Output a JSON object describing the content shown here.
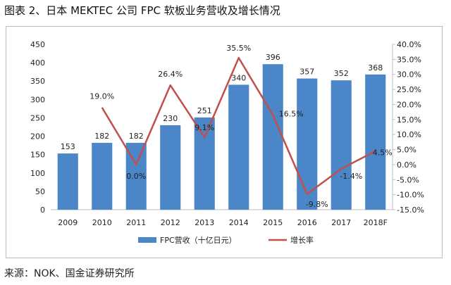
{
  "header": {
    "title": "图表 2、日本 MEKTEC 公司 FPC 软板业务营收及增长情况"
  },
  "footer": {
    "source": "来源：NOK、国金证券研究所"
  },
  "colors": {
    "bar": "#4a86c8",
    "line": "#c0504d",
    "axis": "#bfbfbf",
    "text": "#222222"
  },
  "chart_data": {
    "type": "bar",
    "title": "",
    "categories": [
      "2009",
      "2010",
      "2011",
      "2012",
      "2013",
      "2014",
      "2015",
      "2016",
      "2017",
      "2018F"
    ],
    "series": [
      {
        "name": "FPC营收（十亿日元）",
        "type": "bar",
        "axis": "left",
        "values": [
          153,
          182,
          182,
          230,
          251,
          340,
          396,
          357,
          352,
          368
        ],
        "labels": [
          "153",
          "182",
          "182",
          "230",
          "251",
          "340",
          "396",
          "357",
          "352",
          "368"
        ]
      },
      {
        "name": "增长率",
        "type": "line",
        "axis": "right",
        "values": [
          null,
          19.0,
          0.0,
          26.4,
          9.1,
          35.5,
          16.5,
          -9.8,
          -1.4,
          4.5
        ],
        "labels": [
          "",
          "19.0%",
          "0.0%",
          "26.4%",
          "9.1%",
          "35.5%",
          "16.5%",
          "-9.8%",
          "-1.4%",
          "4.5%"
        ]
      }
    ],
    "ylim": [
      0,
      450
    ],
    "yticks": [
      "0",
      "50",
      "100",
      "150",
      "200",
      "250",
      "300",
      "350",
      "400",
      "450"
    ],
    "y2lim": [
      -15,
      40
    ],
    "y2ticks": [
      "-15.0%",
      "-10.0%",
      "-5.0%",
      "0.0%",
      "5.0%",
      "10.0%",
      "15.0%",
      "20.0%",
      "25.0%",
      "30.0%",
      "35.0%",
      "40.0%"
    ],
    "legend": {
      "position": "bottom",
      "entries": [
        "FPC营收（十亿日元）",
        "增长率"
      ]
    }
  }
}
